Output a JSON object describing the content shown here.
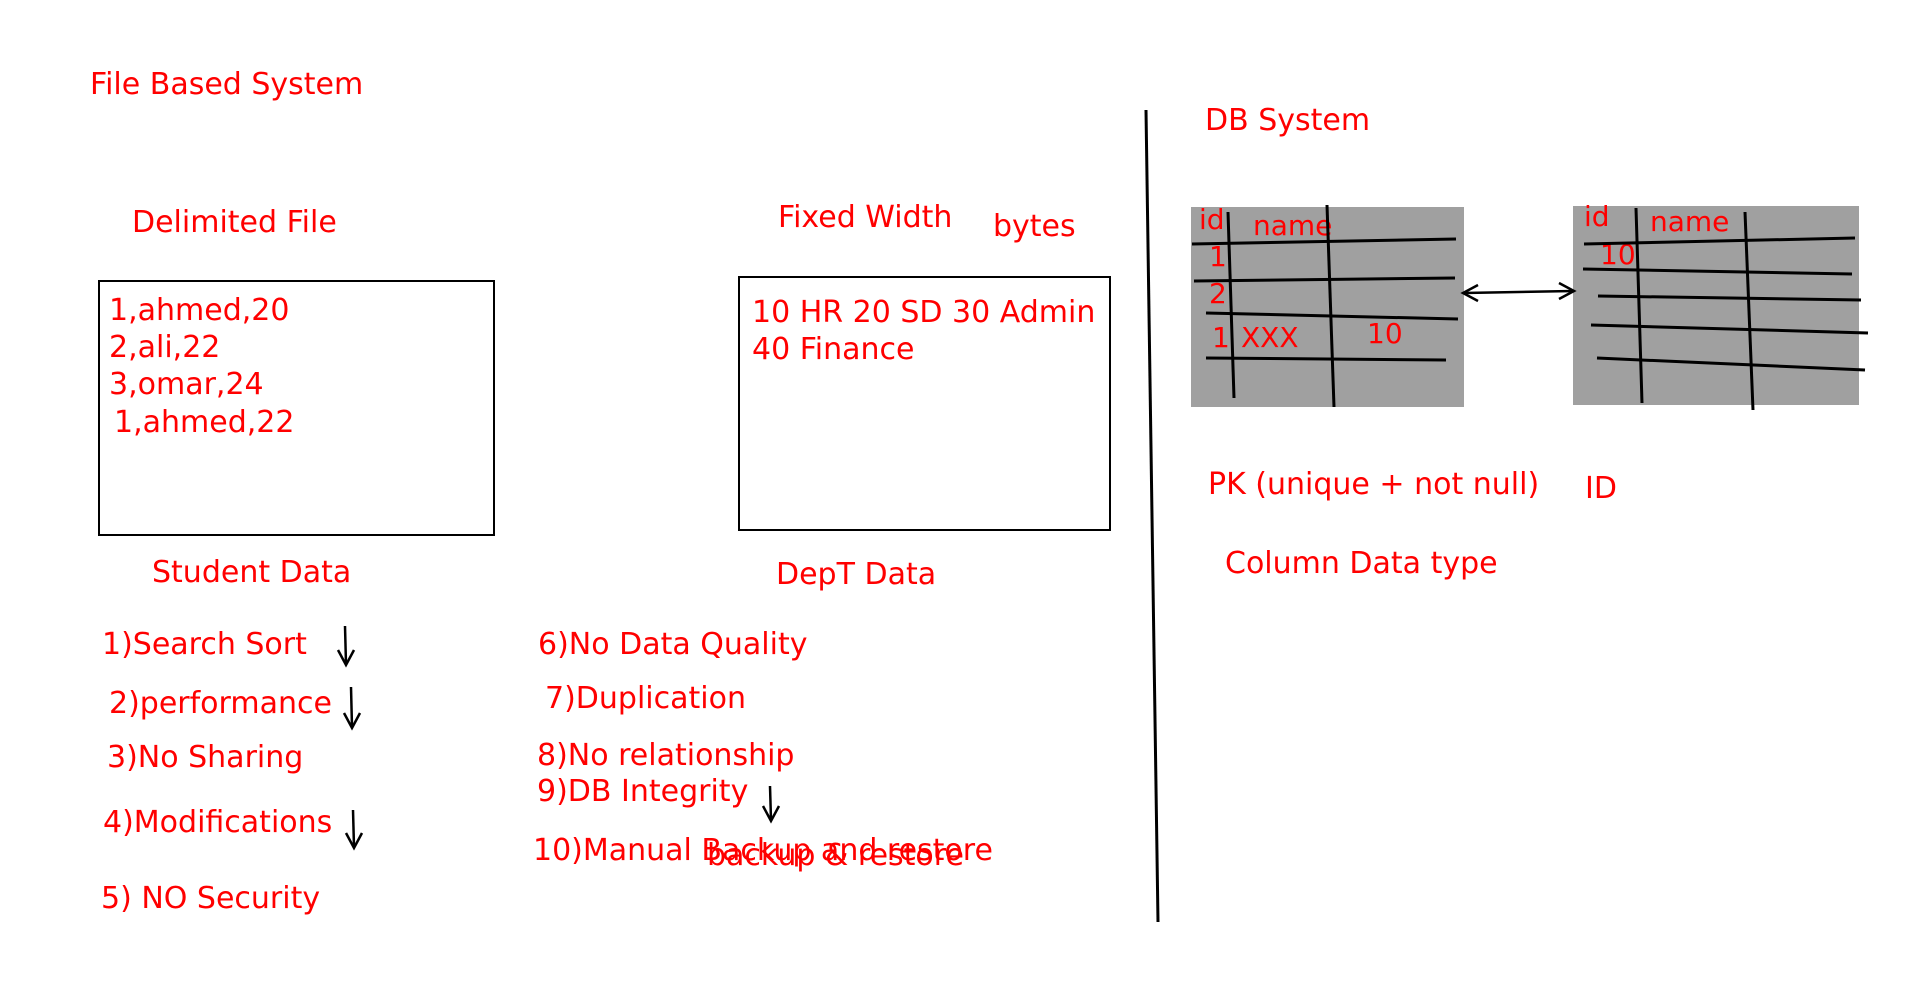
{
  "colors": {
    "ink": "#ff0000",
    "line": "#000000",
    "table_fill": "#a0a0a0"
  },
  "file_based": {
    "title": "File Based System",
    "delimited": {
      "title": "Delimited File",
      "lines": [
        "1,ahmed,20",
        "2,ali,22",
        "3,omar,24",
        "1,ahmed,22"
      ],
      "caption": "Student Data"
    },
    "fixed_width": {
      "title": "Fixed Width",
      "note": "bytes",
      "lines": [
        "10 HR 20 SD 30 Admin",
        "40 Finance"
      ],
      "caption": "DepT Data"
    },
    "problems_left": [
      "1)Search Sort",
      "2)performance",
      "3)No Sharing",
      "4)Modifications",
      "5) NO Security"
    ],
    "problems_right": [
      "6)No Data Quality",
      "7)Duplication",
      "8)No relationship",
      "9)DB Integrity",
      "10)Manual Backup and restore"
    ],
    "overlay_note": "backup & restore"
  },
  "db_system": {
    "title": "DB System",
    "table1": {
      "headers": [
        "id",
        "name"
      ],
      "cells": [
        "1",
        "2",
        "1",
        "XXX",
        "10"
      ]
    },
    "table2": {
      "headers": [
        "id",
        "name"
      ],
      "cells": [
        "10"
      ]
    },
    "pk_note": "PK (unique + not null)",
    "pk_column": "ID",
    "column_note": "Column Data type"
  }
}
